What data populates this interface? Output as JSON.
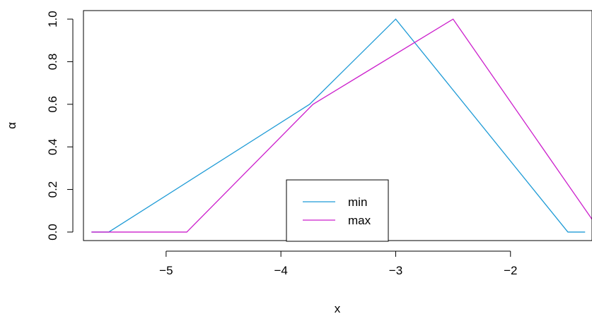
{
  "chart_data": {
    "type": "line",
    "title": "",
    "xlabel": "x",
    "ylabel": "α",
    "xlim": [
      -5.72,
      -1.29
    ],
    "ylim": [
      -0.04,
      1.04
    ],
    "xticks": [
      -5,
      -4,
      -3,
      -2
    ],
    "xtick_labels": [
      "−5",
      "−4",
      "−3",
      "−2"
    ],
    "yticks": [
      0.0,
      0.2,
      0.4,
      0.6,
      0.8,
      1.0
    ],
    "ytick_labels": [
      "0.0",
      "0.2",
      "0.4",
      "0.6",
      "0.8",
      "1.0"
    ],
    "grid": false,
    "legend": {
      "position": "bottom-center"
    },
    "series": [
      {
        "name": "min",
        "color": "#1f9bd6",
        "x": [
          -5.65,
          -5.5,
          -3.75,
          -3.0,
          -1.5,
          -1.35
        ],
        "y": [
          0.0,
          0.0,
          0.6,
          1.0,
          0.0,
          0.0
        ]
      },
      {
        "name": "max",
        "color": "#cc1fcc",
        "x": [
          -5.65,
          -4.82,
          -3.72,
          -2.5,
          -1.29
        ],
        "y": [
          0.0,
          0.0,
          0.6,
          1.0,
          0.06
        ]
      }
    ]
  }
}
